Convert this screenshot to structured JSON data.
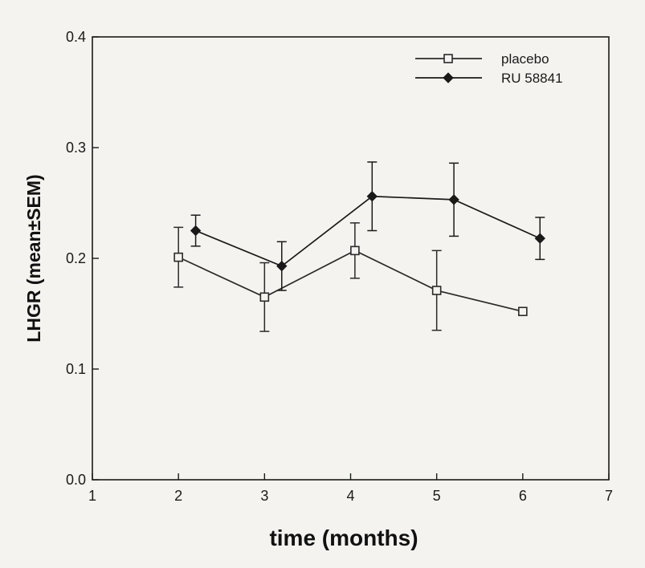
{
  "chart_data": {
    "type": "line",
    "xlabel": "time (months)",
    "ylabel": "LHGR (mean±SEM)",
    "xlim": [
      1,
      7
    ],
    "ylim": [
      0.0,
      0.4
    ],
    "xticks": [
      1,
      2,
      3,
      4,
      5,
      6,
      7
    ],
    "yticks": [
      0.0,
      0.1,
      0.2,
      0.3,
      0.4
    ],
    "xtick_labels": [
      "1",
      "2",
      "3",
      "4",
      "5",
      "6",
      "7"
    ],
    "ytick_labels": [
      "0.0",
      "0.1",
      "0.2",
      "0.3",
      "0.4"
    ],
    "grid": false,
    "legend_position": "top-right",
    "series": [
      {
        "name": "placebo",
        "marker": "open-square",
        "color": "#2a2a2a",
        "x": [
          2,
          3,
          4.05,
          5,
          6
        ],
        "y": [
          0.201,
          0.165,
          0.207,
          0.171,
          0.152
        ],
        "err": [
          0.027,
          0.031,
          0.025,
          0.036,
          0.0
        ]
      },
      {
        "name": "RU 58841",
        "marker": "filled-diamond",
        "color": "#1a1a1a",
        "x": [
          2.2,
          3.2,
          4.25,
          5.2,
          6.2
        ],
        "y": [
          0.225,
          0.193,
          0.256,
          0.253,
          0.218
        ],
        "err": [
          0.014,
          0.022,
          0.031,
          0.033,
          0.019
        ]
      }
    ]
  }
}
